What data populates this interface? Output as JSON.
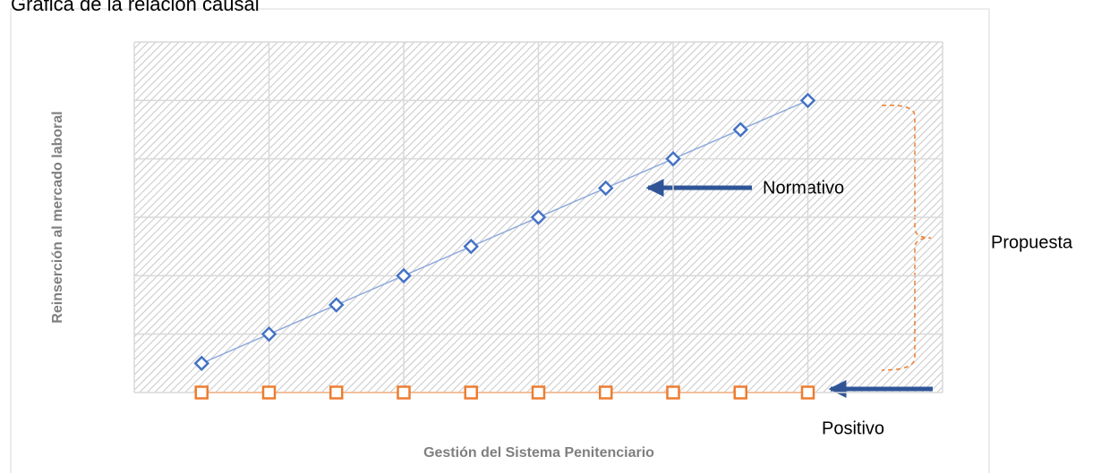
{
  "chart_data": {
    "type": "scatter",
    "title": "Gráfica de la relación causal",
    "x_label": "Gestión del Sistema Penitenciario",
    "y_label": "Reinserción al mercado laboral",
    "xlim": [
      0,
      6
    ],
    "ylim": [
      0,
      6
    ],
    "xticks": [
      0,
      1,
      2,
      3,
      4,
      5,
      6
    ],
    "yticks": [
      0,
      1,
      2,
      3,
      4,
      5,
      6
    ],
    "grid": true,
    "tick_labels": false,
    "series": [
      {
        "name": "Normativo",
        "color": "#4472c4",
        "line_color": "#8faadc",
        "marker": "diamond",
        "x": [
          0.5,
          1,
          1.5,
          2,
          2.5,
          3,
          3.5,
          4,
          4.5,
          5
        ],
        "values": [
          0.5,
          1,
          1.5,
          2,
          2.5,
          3,
          3.5,
          4,
          4.5,
          5
        ]
      },
      {
        "name": "Positivo",
        "color": "#ed7d31",
        "line_color": "#f4b183",
        "marker": "square",
        "x": [
          0.5,
          1,
          1.5,
          2,
          2.5,
          3,
          3.5,
          4,
          4.5,
          5
        ],
        "values": [
          0,
          0,
          0,
          0,
          0,
          0,
          0,
          0,
          0,
          0
        ]
      }
    ],
    "annotations": [
      {
        "text": "Propuesta"
      }
    ]
  }
}
